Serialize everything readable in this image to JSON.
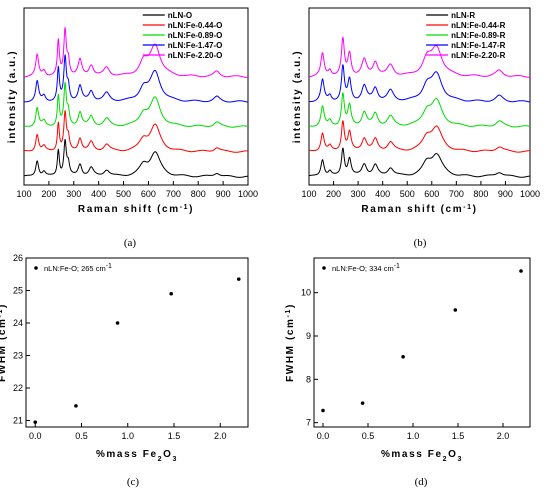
{
  "chart_data": [
    {
      "panel": "a",
      "type": "line",
      "caption": "(a)",
      "xlabel": "Raman shift (cm⁻¹)",
      "ylabel": "intensity (a.u.)",
      "xlim": [
        100,
        1000
      ],
      "xticks": [
        "100",
        "200",
        "300",
        "400",
        "500",
        "600",
        "700",
        "800",
        "900",
        "1000"
      ],
      "legend_position": "top-right",
      "series": [
        {
          "name": "nLN-O",
          "color": "#000000"
        },
        {
          "name": "nLN:Fe-0.44-O",
          "color": "#ff0000"
        },
        {
          "name": "nLN:Fe-0.89-O",
          "color": "#00dd00"
        },
        {
          "name": "nLN:Fe-1.47-O",
          "color": "#0000ff"
        },
        {
          "name": "nLN:Fe-2.20-O",
          "color": "#ff00ff"
        }
      ],
      "peaks": [
        {
          "x": 153,
          "h": 0.42,
          "w": 7
        },
        {
          "x": 180,
          "h": 0.12,
          "w": 8
        },
        {
          "x": 238,
          "h": 0.68,
          "w": 5
        },
        {
          "x": 265,
          "h": 0.9,
          "w": 6
        },
        {
          "x": 278,
          "h": 0.3,
          "w": 6
        },
        {
          "x": 325,
          "h": 0.32,
          "w": 9
        },
        {
          "x": 370,
          "h": 0.22,
          "w": 11
        },
        {
          "x": 432,
          "h": 0.17,
          "w": 14
        },
        {
          "x": 580,
          "h": 0.26,
          "w": 20
        },
        {
          "x": 627,
          "h": 0.62,
          "w": 25
        },
        {
          "x": 875,
          "h": 0.1,
          "w": 14
        }
      ]
    },
    {
      "panel": "b",
      "type": "line",
      "caption": "(b)",
      "xlabel": "Raman shift (cm⁻¹)",
      "ylabel": "intensity (a.u.)",
      "xlim": [
        100,
        1000
      ],
      "xticks": [
        "100",
        "200",
        "300",
        "400",
        "500",
        "600",
        "700",
        "800",
        "900",
        "1000"
      ],
      "legend_position": "top-right",
      "series": [
        {
          "name": "nLN-R",
          "color": "#000000"
        },
        {
          "name": "nLN:Fe-0.44-R",
          "color": "#ff0000"
        },
        {
          "name": "nLN:Fe-0.89-R",
          "color": "#00dd00"
        },
        {
          "name": "nLN:Fe-1.47-R",
          "color": "#0000ff"
        },
        {
          "name": "nLN:Fe-2.20-R",
          "color": "#ff00ff"
        }
      ],
      "peaks": [
        {
          "x": 155,
          "h": 0.45,
          "w": 8
        },
        {
          "x": 185,
          "h": 0.12,
          "w": 8
        },
        {
          "x": 238,
          "h": 0.72,
          "w": 7
        },
        {
          "x": 265,
          "h": 0.45,
          "w": 8
        },
        {
          "x": 325,
          "h": 0.32,
          "w": 12
        },
        {
          "x": 370,
          "h": 0.28,
          "w": 12
        },
        {
          "x": 432,
          "h": 0.22,
          "w": 15
        },
        {
          "x": 580,
          "h": 0.3,
          "w": 22
        },
        {
          "x": 620,
          "h": 0.55,
          "w": 27
        },
        {
          "x": 875,
          "h": 0.12,
          "w": 18
        }
      ]
    },
    {
      "panel": "c",
      "type": "scatter",
      "caption": "(c)",
      "xlabel": "%mass Fe₂O₃",
      "ylabel": "FWHM (cm⁻¹)",
      "xlim": [
        -0.1,
        2.3
      ],
      "ylim": [
        20.8,
        26
      ],
      "xticks": [
        0.0,
        0.5,
        1.0,
        1.5,
        2.0
      ],
      "yticks": [
        21,
        22,
        23,
        24,
        25,
        26
      ],
      "legend": "nLN:Fe-O; 265 cm⁻¹",
      "x": [
        0.0,
        0.44,
        0.89,
        1.47,
        2.2
      ],
      "y": [
        20.95,
        21.45,
        24.0,
        24.9,
        25.35
      ]
    },
    {
      "panel": "d",
      "type": "scatter",
      "caption": "(d)",
      "xlabel": "%mass Fe₂O₃",
      "ylabel": "FWHM (cm⁻¹)",
      "xlim": [
        -0.1,
        2.3
      ],
      "ylim": [
        6.9,
        10.8
      ],
      "xticks": [
        0.0,
        0.5,
        1.0,
        1.5,
        2.0
      ],
      "yticks": [
        7,
        8,
        9,
        10
      ],
      "legend": "nLN:Fe-O; 334 cm⁻¹",
      "x": [
        0.0,
        0.44,
        0.89,
        1.47,
        2.2
      ],
      "y": [
        7.28,
        7.45,
        8.52,
        9.6,
        10.5
      ]
    }
  ]
}
